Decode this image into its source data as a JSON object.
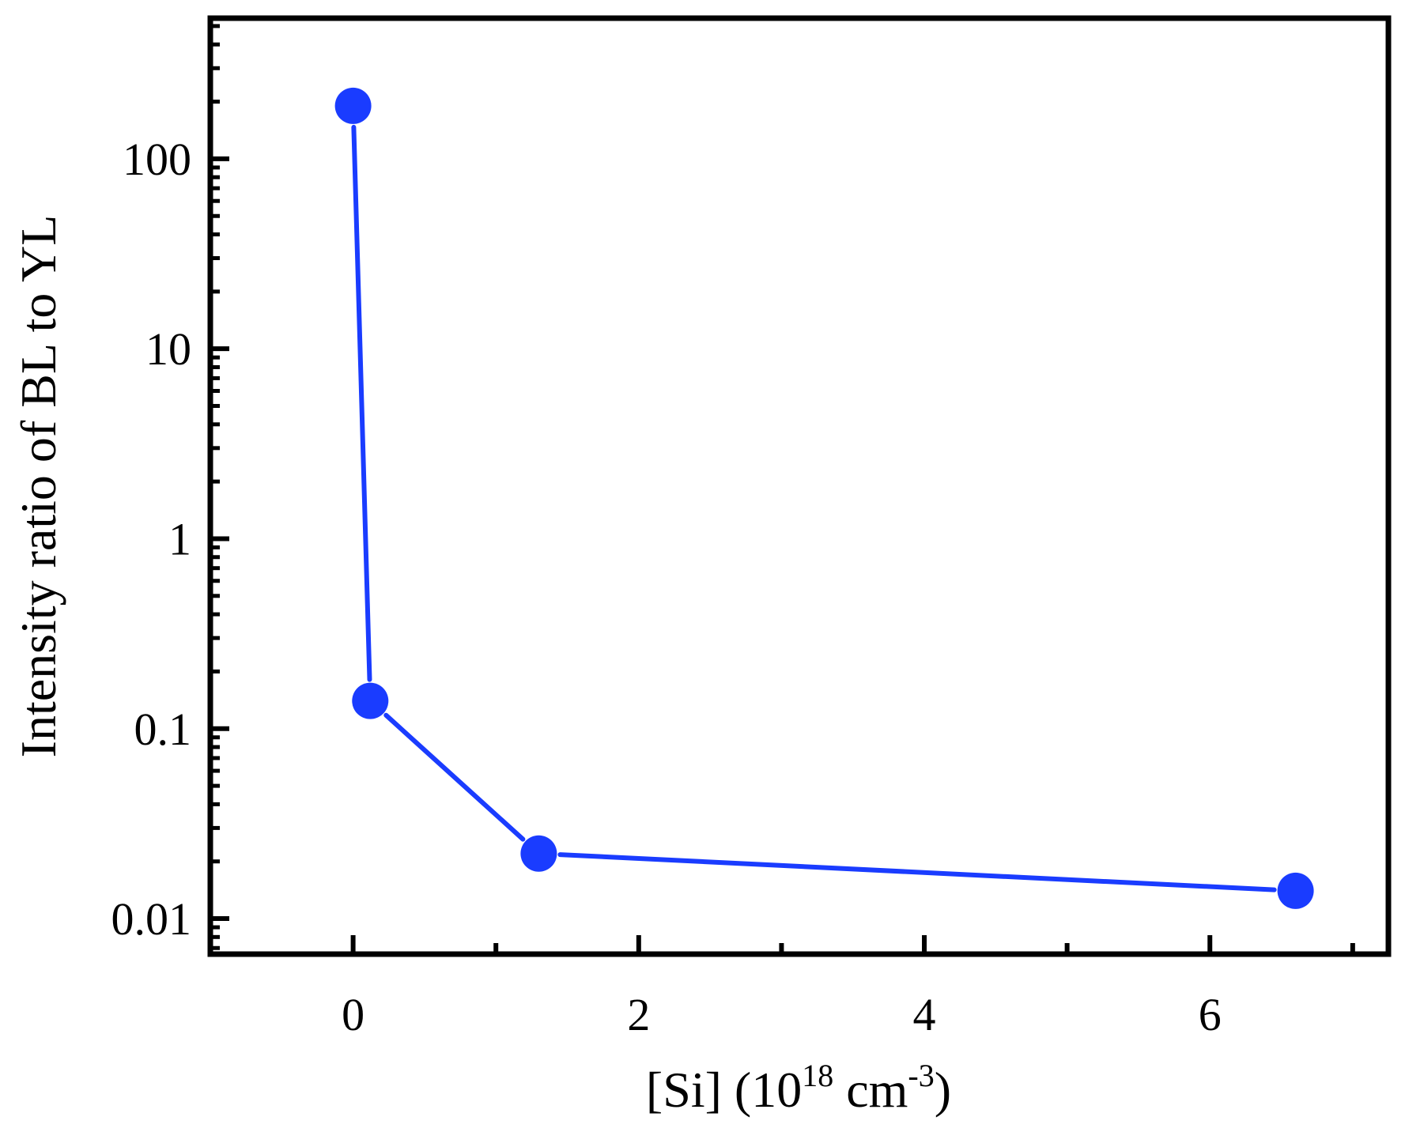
{
  "chart_data": {
    "type": "line",
    "title": "",
    "xlabel": "[Si] (10^18 cm^-3)",
    "xlabel_parts": {
      "pre": "[Si] (10",
      "sup1": "18",
      "mid": " cm",
      "sup2": "-3",
      "post": ")"
    },
    "ylabel": "Intensity ratio of BL to YL",
    "xlim": [
      -1,
      7.25
    ],
    "ylim": [
      0.0065,
      550
    ],
    "yscale": "log",
    "x_ticks": [
      0,
      2,
      4,
      6
    ],
    "x_tick_labels": [
      "0",
      "2",
      "4",
      "6"
    ],
    "x_minor_ticks": [
      1,
      3,
      5,
      7
    ],
    "y_ticks": [
      0.01,
      0.1,
      1,
      10,
      100
    ],
    "y_tick_labels": [
      "0.01",
      "0.1",
      "1",
      "10",
      "100"
    ],
    "grid": false,
    "legend": "none",
    "series": [
      {
        "x": [
          0,
          0.12,
          1.3,
          6.6
        ],
        "y": [
          190,
          0.14,
          0.022,
          0.014
        ],
        "color": "#1a3cff",
        "marker": "circle"
      }
    ]
  }
}
